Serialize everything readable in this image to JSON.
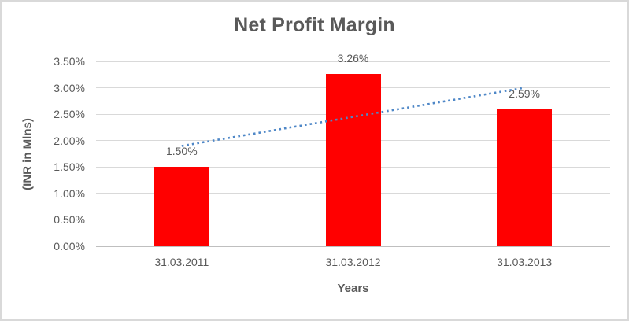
{
  "chart_data": {
    "type": "bar",
    "title": "Net Profit Margin",
    "xlabel": "Years",
    "ylabel": "(INR in Mlns)",
    "categories": [
      "31.03.2011",
      "31.03.2012",
      "31.03.2013"
    ],
    "values": [
      1.5,
      3.26,
      2.59
    ],
    "data_labels": [
      "1.50%",
      "3.26%",
      "2.59%"
    ],
    "ylim": [
      0,
      3.5
    ],
    "yticks_top_to_bottom": [
      "3.50%",
      "3.00%",
      "2.50%",
      "2.00%",
      "1.50%",
      "1.00%",
      "0.50%",
      "0.00%"
    ],
    "grid": true,
    "legend": "none",
    "trendline": {
      "type": "linear",
      "style": "dotted",
      "start_value": 1.9,
      "end_value": 3.0
    },
    "colors": {
      "bar": "#ff0000",
      "trendline": "#4e87c7",
      "gridline": "#d9d9d9",
      "axis_line": "#bfbfbf",
      "text": "#595959",
      "frame_border": "#d9d9d9",
      "background": "#ffffff"
    }
  }
}
